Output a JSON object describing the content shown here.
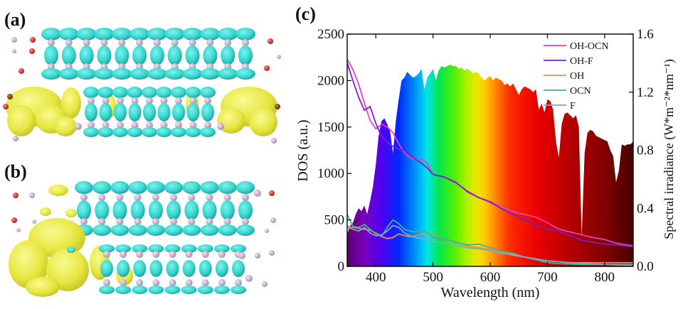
{
  "panels": {
    "a": {
      "label": "(a)"
    },
    "b": {
      "label": "(b)"
    },
    "c": {
      "label": "(c)"
    }
  },
  "structure_colors": {
    "lobe_cyan": "#38d6d0",
    "lobe_cyan_dark": "#1fb3b0",
    "lobe_yellow": "#e6e640",
    "atom_pink": "#c8aac8",
    "atom_red": "#d42020",
    "atom_brown": "#7a3a1a"
  },
  "chart_data": {
    "type": "line",
    "xlabel": "Wavelength (nm)",
    "ylabel": "DOS (a.u.)",
    "y2label": "Spectral irradiance (W*m⁻²*nm⁻¹)",
    "xlim": [
      350,
      850
    ],
    "ylim": [
      0,
      2500
    ],
    "y2lim": [
      0,
      1.6
    ],
    "x_ticks": [
      400,
      500,
      600,
      700,
      800
    ],
    "y_ticks": [
      0,
      500,
      1000,
      1500,
      2000,
      2500
    ],
    "y2_ticks": [
      "0.0",
      "0.4",
      "0.8",
      "1.2",
      "1.6"
    ],
    "legend_position": "top-right",
    "series": [
      {
        "name": "OH-OCN",
        "color": "#e83fbf",
        "x": [
          350,
          360,
          370,
          380,
          390,
          400,
          410,
          420,
          430,
          440,
          450,
          460,
          470,
          480,
          490,
          500,
          520,
          540,
          560,
          580,
          600,
          620,
          640,
          660,
          680,
          700,
          720,
          740,
          760,
          780,
          800,
          820,
          850
        ],
        "y": [
          2230,
          2120,
          1960,
          1760,
          1570,
          1480,
          1530,
          1500,
          1440,
          1320,
          1220,
          1170,
          1150,
          1160,
          1110,
          990,
          960,
          910,
          800,
          740,
          700,
          640,
          590,
          560,
          530,
          470,
          400,
          370,
          340,
          310,
          290,
          250,
          220
        ]
      },
      {
        "name": "OH-F",
        "color": "#7a1fd0",
        "x": [
          350,
          360,
          370,
          380,
          390,
          400,
          410,
          420,
          430,
          440,
          450,
          460,
          470,
          480,
          490,
          500,
          520,
          540,
          560,
          580,
          600,
          620,
          640,
          660,
          680,
          700,
          720,
          740,
          760,
          780,
          800,
          820,
          850
        ],
        "y": [
          2190,
          2000,
          1820,
          1680,
          1720,
          1540,
          1400,
          1340,
          1290,
          1260,
          1250,
          1200,
          1150,
          1110,
          1060,
          990,
          960,
          900,
          810,
          740,
          690,
          620,
          560,
          500,
          440,
          400,
          380,
          330,
          280,
          260,
          240,
          230,
          210
        ]
      },
      {
        "name": "OH",
        "color": "#f08a4a",
        "x": [
          350,
          370,
          390,
          400,
          410,
          420,
          430,
          440,
          450,
          460,
          470,
          480,
          500,
          520,
          540,
          560,
          580,
          600,
          620,
          640,
          660,
          680,
          700,
          720,
          740,
          760,
          780,
          800,
          850
        ],
        "y": [
          430,
          410,
          390,
          360,
          320,
          300,
          310,
          350,
          330,
          320,
          330,
          350,
          340,
          300,
          260,
          220,
          200,
          180,
          150,
          120,
          100,
          80,
          60,
          50,
          40,
          40,
          40,
          40,
          40
        ]
      },
      {
        "name": "OCN",
        "color": "#3cb88a",
        "x": [
          350,
          360,
          370,
          380,
          390,
          400,
          410,
          420,
          430,
          440,
          450,
          460,
          470,
          480,
          490,
          500,
          520,
          540,
          560,
          580,
          600,
          620,
          640,
          660,
          680,
          700,
          720,
          740,
          760,
          800,
          850
        ],
        "y": [
          560,
          430,
          420,
          450,
          400,
          350,
          320,
          420,
          500,
          460,
          400,
          380,
          370,
          400,
          360,
          320,
          300,
          260,
          230,
          240,
          200,
          160,
          140,
          100,
          70,
          40,
          30,
          25,
          20,
          20,
          20
        ]
      },
      {
        "name": "F",
        "color": "#7aa8d8",
        "x": [
          350,
          360,
          370,
          380,
          390,
          400,
          410,
          420,
          430,
          440,
          450,
          460,
          470,
          480,
          490,
          500,
          520,
          540,
          560,
          580,
          600,
          620,
          640,
          660,
          680,
          700,
          720,
          740,
          760,
          800,
          850
        ],
        "y": [
          420,
          400,
          380,
          420,
          360,
          330,
          340,
          380,
          440,
          420,
          360,
          330,
          310,
          300,
          290,
          270,
          250,
          230,
          200,
          190,
          170,
          140,
          130,
          100,
          80,
          60,
          50,
          40,
          30,
          20,
          10
        ]
      }
    ],
    "solar_spectrum": {
      "x": [
        350,
        355,
        360,
        365,
        370,
        375,
        380,
        385,
        390,
        395,
        400,
        405,
        410,
        415,
        420,
        425,
        430,
        435,
        440,
        445,
        450,
        455,
        460,
        465,
        470,
        475,
        480,
        485,
        490,
        495,
        500,
        505,
        510,
        515,
        520,
        525,
        530,
        535,
        540,
        545,
        550,
        555,
        560,
        565,
        570,
        575,
        580,
        585,
        590,
        595,
        600,
        605,
        610,
        615,
        620,
        625,
        630,
        635,
        640,
        645,
        650,
        655,
        660,
        665,
        670,
        675,
        680,
        685,
        690,
        695,
        700,
        705,
        710,
        715,
        720,
        725,
        730,
        735,
        740,
        745,
        750,
        755,
        760,
        765,
        770,
        775,
        780,
        785,
        790,
        795,
        800,
        805,
        810,
        815,
        820,
        825,
        830,
        835,
        840,
        845,
        850
      ],
      "y": [
        0.22,
        0.28,
        0.3,
        0.36,
        0.4,
        0.38,
        0.42,
        0.36,
        0.45,
        0.55,
        0.7,
        0.9,
        1.0,
        1.02,
        0.98,
        0.93,
        0.78,
        1.0,
        1.15,
        1.28,
        1.3,
        1.34,
        1.32,
        1.3,
        1.31,
        1.33,
        1.36,
        1.22,
        1.3,
        1.33,
        1.36,
        1.28,
        1.35,
        1.38,
        1.37,
        1.38,
        1.39,
        1.38,
        1.38,
        1.36,
        1.37,
        1.35,
        1.36,
        1.35,
        1.33,
        1.34,
        1.33,
        1.3,
        1.28,
        1.3,
        1.31,
        1.28,
        1.3,
        1.29,
        1.28,
        1.25,
        1.26,
        1.24,
        1.26,
        1.22,
        1.18,
        1.22,
        1.24,
        1.23,
        1.22,
        1.2,
        1.22,
        1.08,
        1.12,
        1.06,
        1.15,
        1.14,
        1.08,
        0.86,
        0.75,
        0.98,
        1.05,
        1.06,
        1.04,
        1.02,
        1.04,
        0.96,
        0.2,
        0.78,
        0.92,
        0.94,
        0.93,
        0.9,
        0.89,
        0.88,
        0.87,
        0.86,
        0.8,
        0.76,
        0.58,
        0.66,
        0.84,
        0.83,
        0.84,
        0.84,
        0.86
      ]
    }
  }
}
